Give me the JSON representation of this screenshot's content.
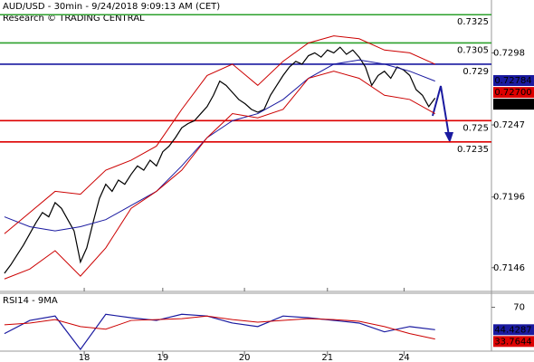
{
  "chart_data": [
    {
      "type": "line",
      "title": "AUD/USD - 30min - 9/24/2018 9:09:13 AM (CET)",
      "subtitle": "Research © TRADING CENTRAL",
      "xlim": [
        -0.7,
        76.9
      ],
      "ylim": [
        0.71292,
        0.73354
      ],
      "yticks": [
        0.7298,
        0.7247,
        0.7196,
        0.7146
      ],
      "series": [
        {
          "color": "#000000",
          "x": [
            0,
            1,
            2,
            3,
            4,
            5,
            6,
            7,
            8,
            9,
            10,
            11,
            12,
            13,
            14,
            15,
            16,
            17,
            18,
            19,
            20,
            21,
            22,
            23,
            24,
            25,
            26,
            27,
            28,
            29,
            30,
            31,
            32,
            33,
            34,
            35,
            36,
            37,
            38,
            39,
            40,
            41,
            42,
            43,
            44,
            45,
            46,
            47,
            48,
            49,
            50,
            51,
            52,
            53,
            54,
            55,
            56,
            57,
            58,
            59,
            60,
            61,
            62,
            63,
            64,
            65,
            66,
            67,
            68
          ],
          "values": [
            0.7142,
            0.7148,
            0.7155,
            0.7162,
            0.717,
            0.7178,
            0.7185,
            0.7182,
            0.7192,
            0.7188,
            0.718,
            0.7172,
            0.715,
            0.716,
            0.7178,
            0.7195,
            0.7205,
            0.72,
            0.7208,
            0.7205,
            0.7212,
            0.7218,
            0.7215,
            0.7222,
            0.7218,
            0.7228,
            0.7232,
            0.7238,
            0.7245,
            0.7248,
            0.725,
            0.7255,
            0.726,
            0.7268,
            0.7278,
            0.7275,
            0.727,
            0.7265,
            0.7262,
            0.7258,
            0.7256,
            0.7258,
            0.7268,
            0.7275,
            0.7282,
            0.7288,
            0.7292,
            0.729,
            0.7296,
            0.7298,
            0.7295,
            0.73,
            0.7298,
            0.7302,
            0.7297,
            0.73,
            0.7295,
            0.7288,
            0.7275,
            0.7282,
            0.7285,
            0.728,
            0.7288,
            0.7286,
            0.7282,
            0.7272,
            0.7268,
            0.726,
            0.7266
          ]
        },
        {
          "color": "#1a1aa0",
          "x": [
            0,
            4,
            8,
            12,
            16,
            20,
            24,
            28,
            32,
            36,
            40,
            44,
            48,
            52,
            56,
            60,
            64,
            68
          ],
          "values": [
            0.7182,
            0.7175,
            0.7172,
            0.7175,
            0.718,
            0.719,
            0.72,
            0.7218,
            0.7238,
            0.725,
            0.7255,
            0.7265,
            0.728,
            0.729,
            0.7293,
            0.729,
            0.7285,
            0.7278
          ]
        },
        {
          "color": "#cc0000",
          "x": [
            0,
            4,
            8,
            12,
            16,
            20,
            24,
            28,
            32,
            36,
            40,
            44,
            48,
            52,
            56,
            60,
            64,
            68
          ],
          "values": [
            0.717,
            0.7185,
            0.72,
            0.7198,
            0.7215,
            0.7222,
            0.7232,
            0.7258,
            0.7282,
            0.729,
            0.7275,
            0.7292,
            0.7305,
            0.731,
            0.7308,
            0.73,
            0.7298,
            0.729
          ]
        },
        {
          "color": "#cc0000",
          "x": [
            0,
            4,
            8,
            12,
            16,
            20,
            24,
            28,
            32,
            36,
            40,
            44,
            48,
            52,
            56,
            60,
            64,
            68
          ],
          "values": [
            0.7138,
            0.7145,
            0.7158,
            0.714,
            0.716,
            0.7188,
            0.72,
            0.7215,
            0.7238,
            0.7255,
            0.7252,
            0.7258,
            0.728,
            0.7285,
            0.728,
            0.7268,
            0.7265,
            0.7255
          ]
        }
      ],
      "levels": [
        {
          "value": 0.7325,
          "color": "#2ca02c"
        },
        {
          "value": 0.7305,
          "color": "#2ca02c"
        },
        {
          "value": 0.729,
          "color": "#1a1aa0"
        },
        {
          "value": 0.725,
          "color": "#dd0000"
        },
        {
          "value": 0.7235,
          "color": "#dd0000"
        }
      ],
      "last_values": [
        {
          "value": 0.72784,
          "color": "#1a1aa0"
        },
        {
          "value": 0.727,
          "label": "0.72700",
          "color": "#dd0000"
        },
        {
          "value": 0.72662,
          "color": "#000000"
        }
      ]
    },
    {
      "type": "line",
      "title": "RSI14 - 9MA",
      "xlim": [
        -0.7,
        76.9
      ],
      "ylim": [
        20,
        86
      ],
      "yticks": [
        70
      ],
      "xticks": [
        {
          "value": 12.6,
          "label": "18"
        },
        {
          "value": 25,
          "label": "19"
        },
        {
          "value": 37.9,
          "label": "20"
        },
        {
          "value": 51,
          "label": "21"
        },
        {
          "value": 63.1,
          "label": "24"
        }
      ],
      "series": [
        {
          "color": "#1a1aa0",
          "x": [
            0,
            4,
            8,
            12,
            16,
            20,
            24,
            28,
            32,
            36,
            40,
            44,
            48,
            52,
            56,
            60,
            64,
            68
          ],
          "values": [
            40,
            55,
            60,
            22,
            62,
            58,
            55,
            62,
            60,
            52,
            48,
            60,
            58,
            55,
            52,
            42,
            48,
            44.4287
          ]
        },
        {
          "color": "#cc0000",
          "x": [
            0,
            4,
            8,
            12,
            16,
            20,
            24,
            28,
            32,
            36,
            40,
            44,
            48,
            52,
            56,
            60,
            64,
            68
          ],
          "values": [
            50,
            52,
            56,
            48,
            45,
            55,
            56,
            57,
            60,
            56,
            53,
            55,
            57,
            56,
            54,
            48,
            40,
            33.7644
          ]
        }
      ],
      "last_values": [
        {
          "value": 44.4287,
          "color": "#1a1aa0"
        },
        {
          "value": 33.7644,
          "color": "#dd0000"
        }
      ]
    }
  ]
}
